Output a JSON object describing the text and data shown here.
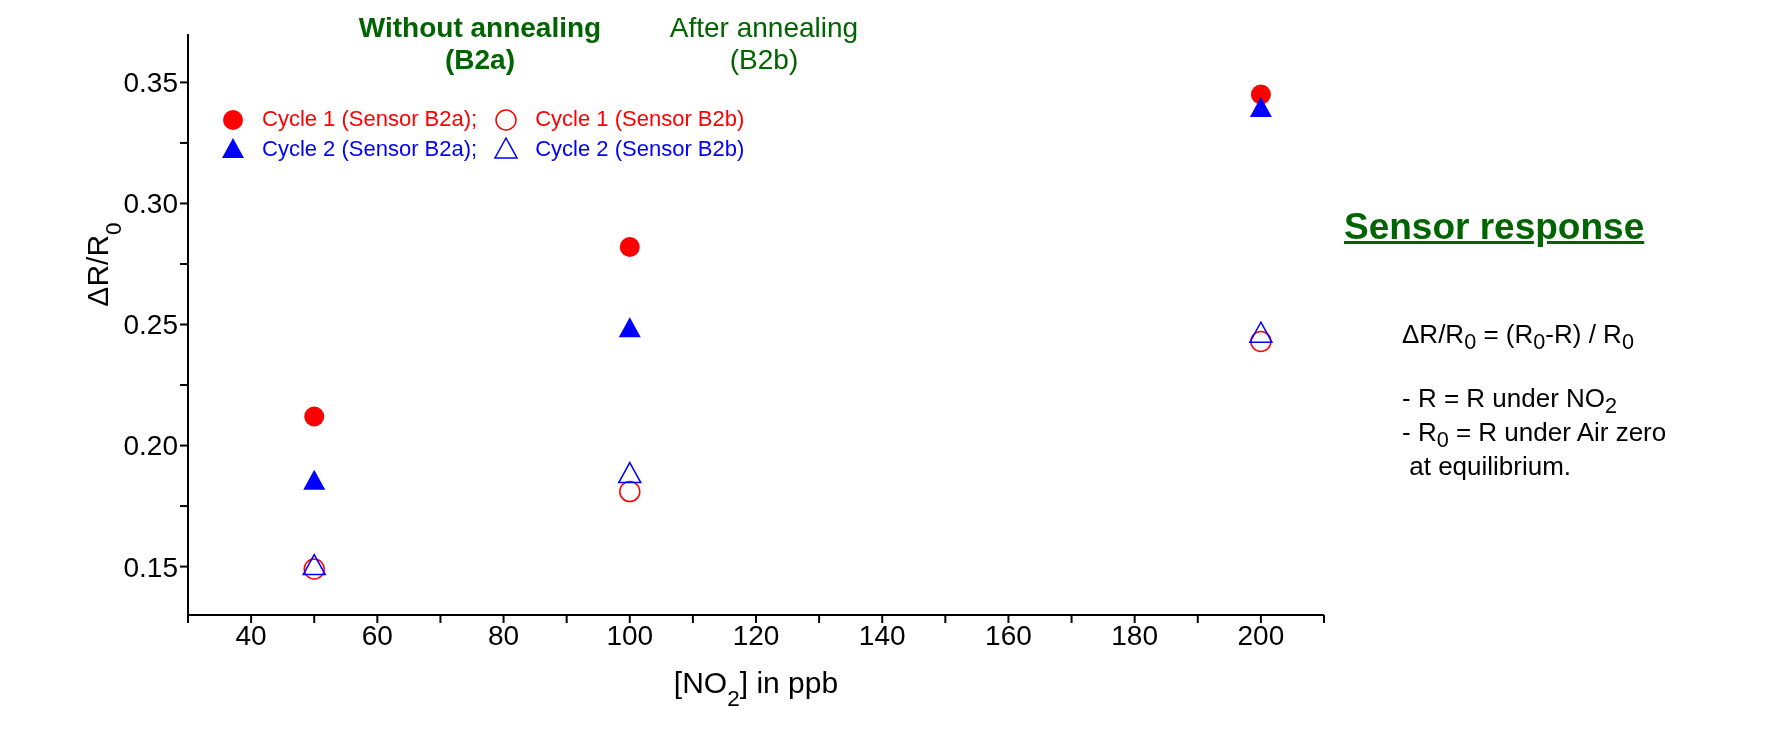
{
  "chart_data": {
    "type": "scatter",
    "xlabel": "[NO$_{2}$] in ppb",
    "ylabel": "ΔR/R$_{0}$",
    "x": [
      50,
      100,
      200
    ],
    "series": [
      {
        "name": "Cycle 1 (Sensor B2a);",
        "color": "#ff0000",
        "marker": "circle",
        "values": [
          0.212,
          0.282,
          0.345
        ]
      },
      {
        "name": "Cycle 2 (Sensor B2a);",
        "color": "#0000ff",
        "marker": "triangle",
        "values": [
          0.185,
          0.248,
          0.339
        ]
      },
      {
        "name": "Cycle 1 (Sensor B2b)",
        "color": "#ff0000",
        "marker": "circle",
        "values": [
          0.149,
          0.181,
          0.243
        ]
      },
      {
        "name": "Cycle 2 (Sensor B2b)",
        "color": "#0000ff",
        "marker": "triangle",
        "values": [
          0.15,
          0.188,
          0.246
        ]
      }
    ],
    "xlim": [
      30,
      210
    ],
    "xticks": [
      {
        "value": 30,
        "label": null
      },
      40,
      {
        "value": 50,
        "label": null
      },
      60,
      {
        "value": 70,
        "label": null
      },
      80,
      {
        "value": 90,
        "label": null
      },
      100,
      {
        "value": 110,
        "label": null
      },
      120,
      {
        "value": 130,
        "label": null
      },
      140,
      {
        "value": 150,
        "label": null
      },
      160,
      {
        "value": 170,
        "label": null
      },
      180,
      {
        "value": 190,
        "label": null
      },
      200,
      {
        "value": 210,
        "label": null
      }
    ],
    "ylim": [
      0.13,
      0.37
    ],
    "yticks": [
      0.15,
      {
        "value": 0.175,
        "label": null
      },
      {
        "value": 0.2,
        "label": "0.20"
      },
      {
        "value": 0.225,
        "label": null
      },
      0.25,
      {
        "value": 0.275,
        "label": null
      },
      {
        "value": 0.3,
        "label": "0.30"
      },
      {
        "value": 0.325,
        "label": null
      },
      0.35
    ],
    "grid": false,
    "legend": "top left",
    "annotations": [
      "Without annealing (B2a)",
      "After annealing (B2b)",
      "Sensor response",
      "ΔR/R$_{0}$ = (R$_{0}$-R) / R$_{0}$",
      "- R = R under NO$_{2}$",
      "- R$_{0}$ = R under Air zero",
      " at equilibrium."
    ]
  }
}
